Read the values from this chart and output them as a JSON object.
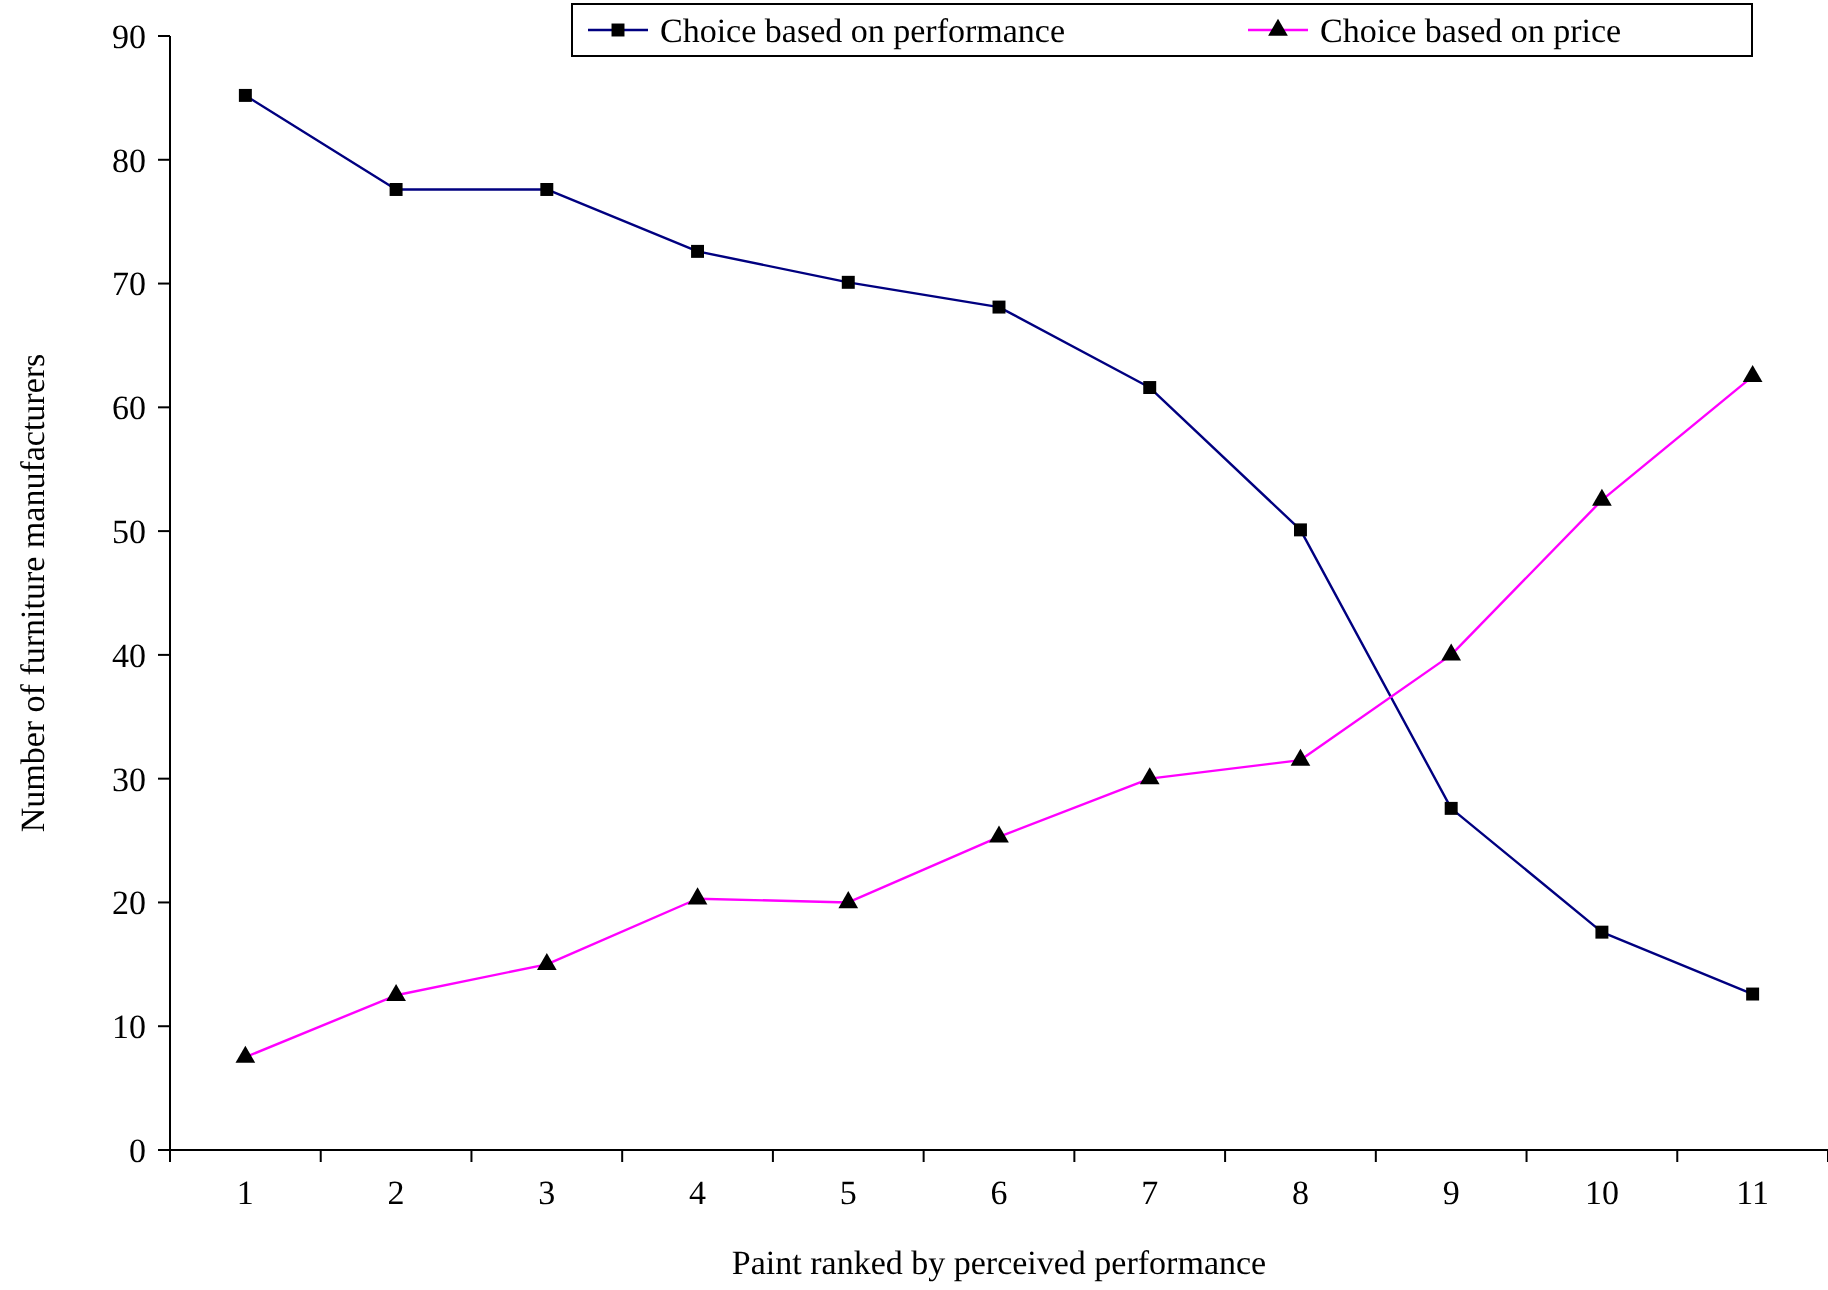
{
  "chart_data": {
    "type": "line",
    "xlabel": "Paint ranked by perceived performance",
    "ylabel": "Number of furniture manufacturers",
    "categories": [
      "1",
      "2",
      "3",
      "4",
      "5",
      "6",
      "7",
      "8",
      "9",
      "10",
      "11"
    ],
    "ylim": [
      0,
      90
    ],
    "yticks": [
      0,
      10,
      20,
      30,
      40,
      50,
      60,
      70,
      80,
      90
    ],
    "grid": false,
    "legend": "top right",
    "line_style": "solid",
    "series": [
      {
        "name": "Choice based on performance",
        "color": "#000080",
        "marker": "square",
        "values": [
          85.2,
          77.6,
          77.6,
          72.6,
          70.1,
          68.1,
          61.6,
          50.1,
          27.6,
          17.6,
          12.6
        ]
      },
      {
        "name": "Choice based on price",
        "color": "#ff00ff",
        "marker": "triangle",
        "values": [
          7.5,
          12.5,
          15,
          20.3,
          20,
          25.3,
          30,
          31.5,
          40,
          52.5,
          62.5
        ]
      }
    ]
  }
}
